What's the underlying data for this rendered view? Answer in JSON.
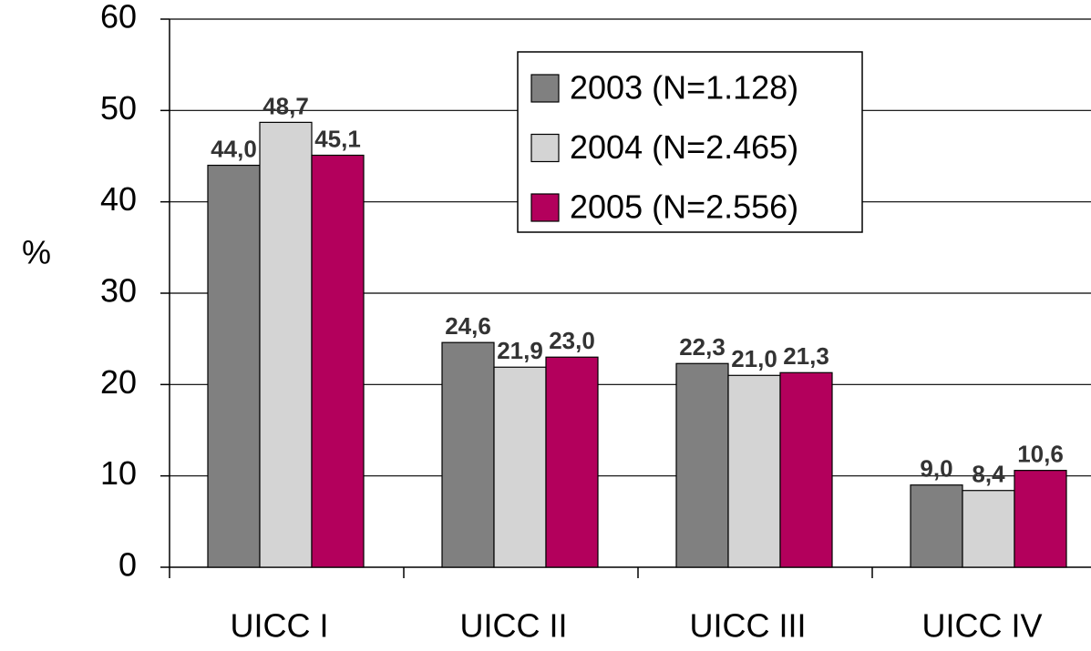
{
  "chart_data": {
    "type": "bar",
    "y_label": "%",
    "categories": [
      "UICC I",
      "UICC II",
      "UICC III",
      "UICC IV"
    ],
    "series": [
      {
        "name": "2003 (N=1.128)",
        "color": "#808080",
        "values": [
          44.0,
          24.6,
          22.3,
          9.0
        ],
        "value_labels": [
          "44,0",
          "24,6",
          "22,3",
          "9,0"
        ]
      },
      {
        "name": "2004 (N=2.465)",
        "color": "#d4d4d4",
        "values": [
          48.7,
          21.9,
          21.0,
          8.4
        ],
        "value_labels": [
          "48,7",
          "21,9",
          "21,0",
          "8,4"
        ]
      },
      {
        "name": "2005 (N=2.556)",
        "color": "#b3005c",
        "values": [
          45.1,
          23.0,
          21.3,
          10.6
        ],
        "value_labels": [
          "45,1",
          "23,0",
          "21,3",
          "10,6"
        ]
      }
    ],
    "ylim": [
      0,
      60
    ],
    "yticks": [
      0,
      10,
      20,
      30,
      40,
      50,
      60
    ],
    "grid": true,
    "legend_position": "top-right"
  }
}
